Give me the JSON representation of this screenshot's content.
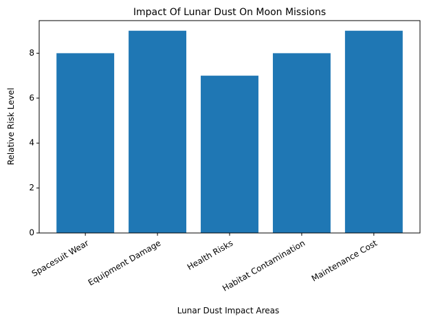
{
  "chart_data": {
    "type": "bar",
    "title": "Impact Of Lunar Dust On Moon Missions",
    "xlabel": "Lunar Dust Impact Areas",
    "ylabel": "Relative Risk Level",
    "categories": [
      "Spacesuit Wear",
      "Equipment Damage",
      "Health Risks",
      "Habitat Contamination",
      "Maintenance Cost"
    ],
    "values": [
      8,
      9,
      7,
      8,
      9
    ],
    "color": "#1f77b4",
    "ylim": [
      0,
      9.45
    ],
    "yticks": [
      0,
      2,
      4,
      6,
      8
    ]
  }
}
